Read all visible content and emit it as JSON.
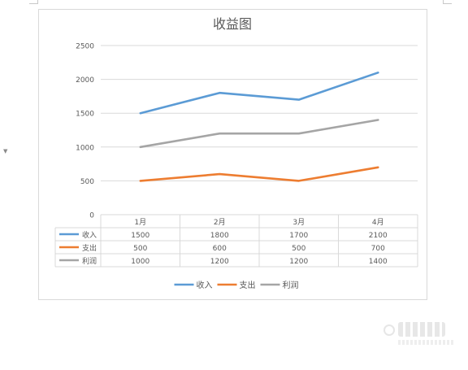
{
  "chart_data": {
    "type": "line",
    "title": "收益图",
    "categories": [
      "1月",
      "2月",
      "3月",
      "4月"
    ],
    "series": [
      {
        "name": "收入",
        "values": [
          1500,
          1800,
          1700,
          2100
        ],
        "color": "#5B9BD5"
      },
      {
        "name": "支出",
        "values": [
          500,
          600,
          500,
          700
        ],
        "color": "#ED7D31"
      },
      {
        "name": "利润",
        "values": [
          1000,
          1200,
          1200,
          1400
        ],
        "color": "#A5A5A5"
      }
    ],
    "ylim": [
      0,
      2500
    ],
    "yticks": [
      "0",
      "500",
      "1000",
      "1500",
      "2000",
      "2500"
    ],
    "grid": true,
    "data_table": true,
    "legend": "bottom"
  }
}
